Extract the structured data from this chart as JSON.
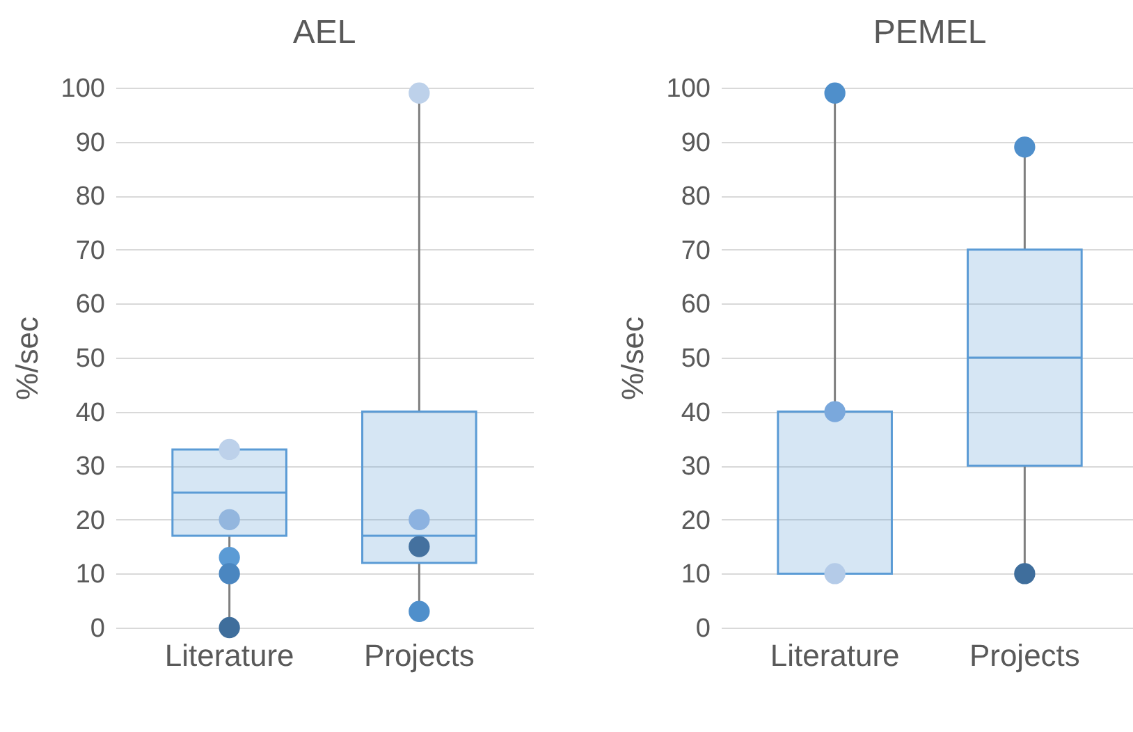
{
  "chart_data": [
    {
      "type": "box",
      "title": "AEL",
      "ylabel": "%/sec",
      "categories": [
        "Literature",
        "Projects"
      ],
      "color": "#5b9bd5",
      "boxes": [
        {
          "low": 0,
          "q1": 17,
          "median": 25,
          "q3": 33,
          "high": 33
        },
        {
          "low": 3,
          "q1": 12,
          "median": 17,
          "q3": 40,
          "high": 99
        }
      ],
      "series": [
        {
          "type": "scatter",
          "x": [
            "Literature",
            "Literature",
            "Literature",
            "Literature",
            "Literature",
            "Projects",
            "Projects",
            "Projects",
            "Projects"
          ],
          "values": [
            33,
            20,
            13,
            10,
            0,
            99,
            20,
            15,
            3
          ],
          "colors": [
            "#bdd1ea",
            "#93b6de",
            "#5b9bd5",
            "#4a86c0",
            "#3f6e9c",
            "#bdd1ea",
            "#8cb2e0",
            "#44719f",
            "#4f8fcb"
          ]
        }
      ],
      "ylim": [
        0,
        100
      ],
      "yticks": [
        0,
        10,
        20,
        30,
        40,
        50,
        60,
        70,
        80,
        90,
        100
      ],
      "grid": "y",
      "marker": "circle"
    },
    {
      "type": "box",
      "title": "PEMEL",
      "ylabel": "%/sec",
      "categories": [
        "Literature",
        "Projects"
      ],
      "color": "#5b9bd5",
      "boxes": [
        {
          "low": 10,
          "q1": 10,
          "median": 10,
          "q3": 40,
          "high": 99
        },
        {
          "low": 10,
          "q1": 30,
          "median": 50,
          "q3": 70,
          "high": 89
        }
      ],
      "series": [
        {
          "type": "scatter",
          "x": [
            "Literature",
            "Literature",
            "Literature",
            "Projects",
            "Projects"
          ],
          "values": [
            99,
            40,
            10,
            89,
            10
          ],
          "colors": [
            "#4f8fcb",
            "#7aa8dc",
            "#b4cbe8",
            "#4f8fcb",
            "#3f6e9c"
          ]
        }
      ],
      "ylim": [
        0,
        100
      ],
      "yticks": [
        0,
        10,
        20,
        30,
        40,
        50,
        60,
        70,
        80,
        90,
        100
      ],
      "grid": "y",
      "marker": "circle"
    }
  ]
}
